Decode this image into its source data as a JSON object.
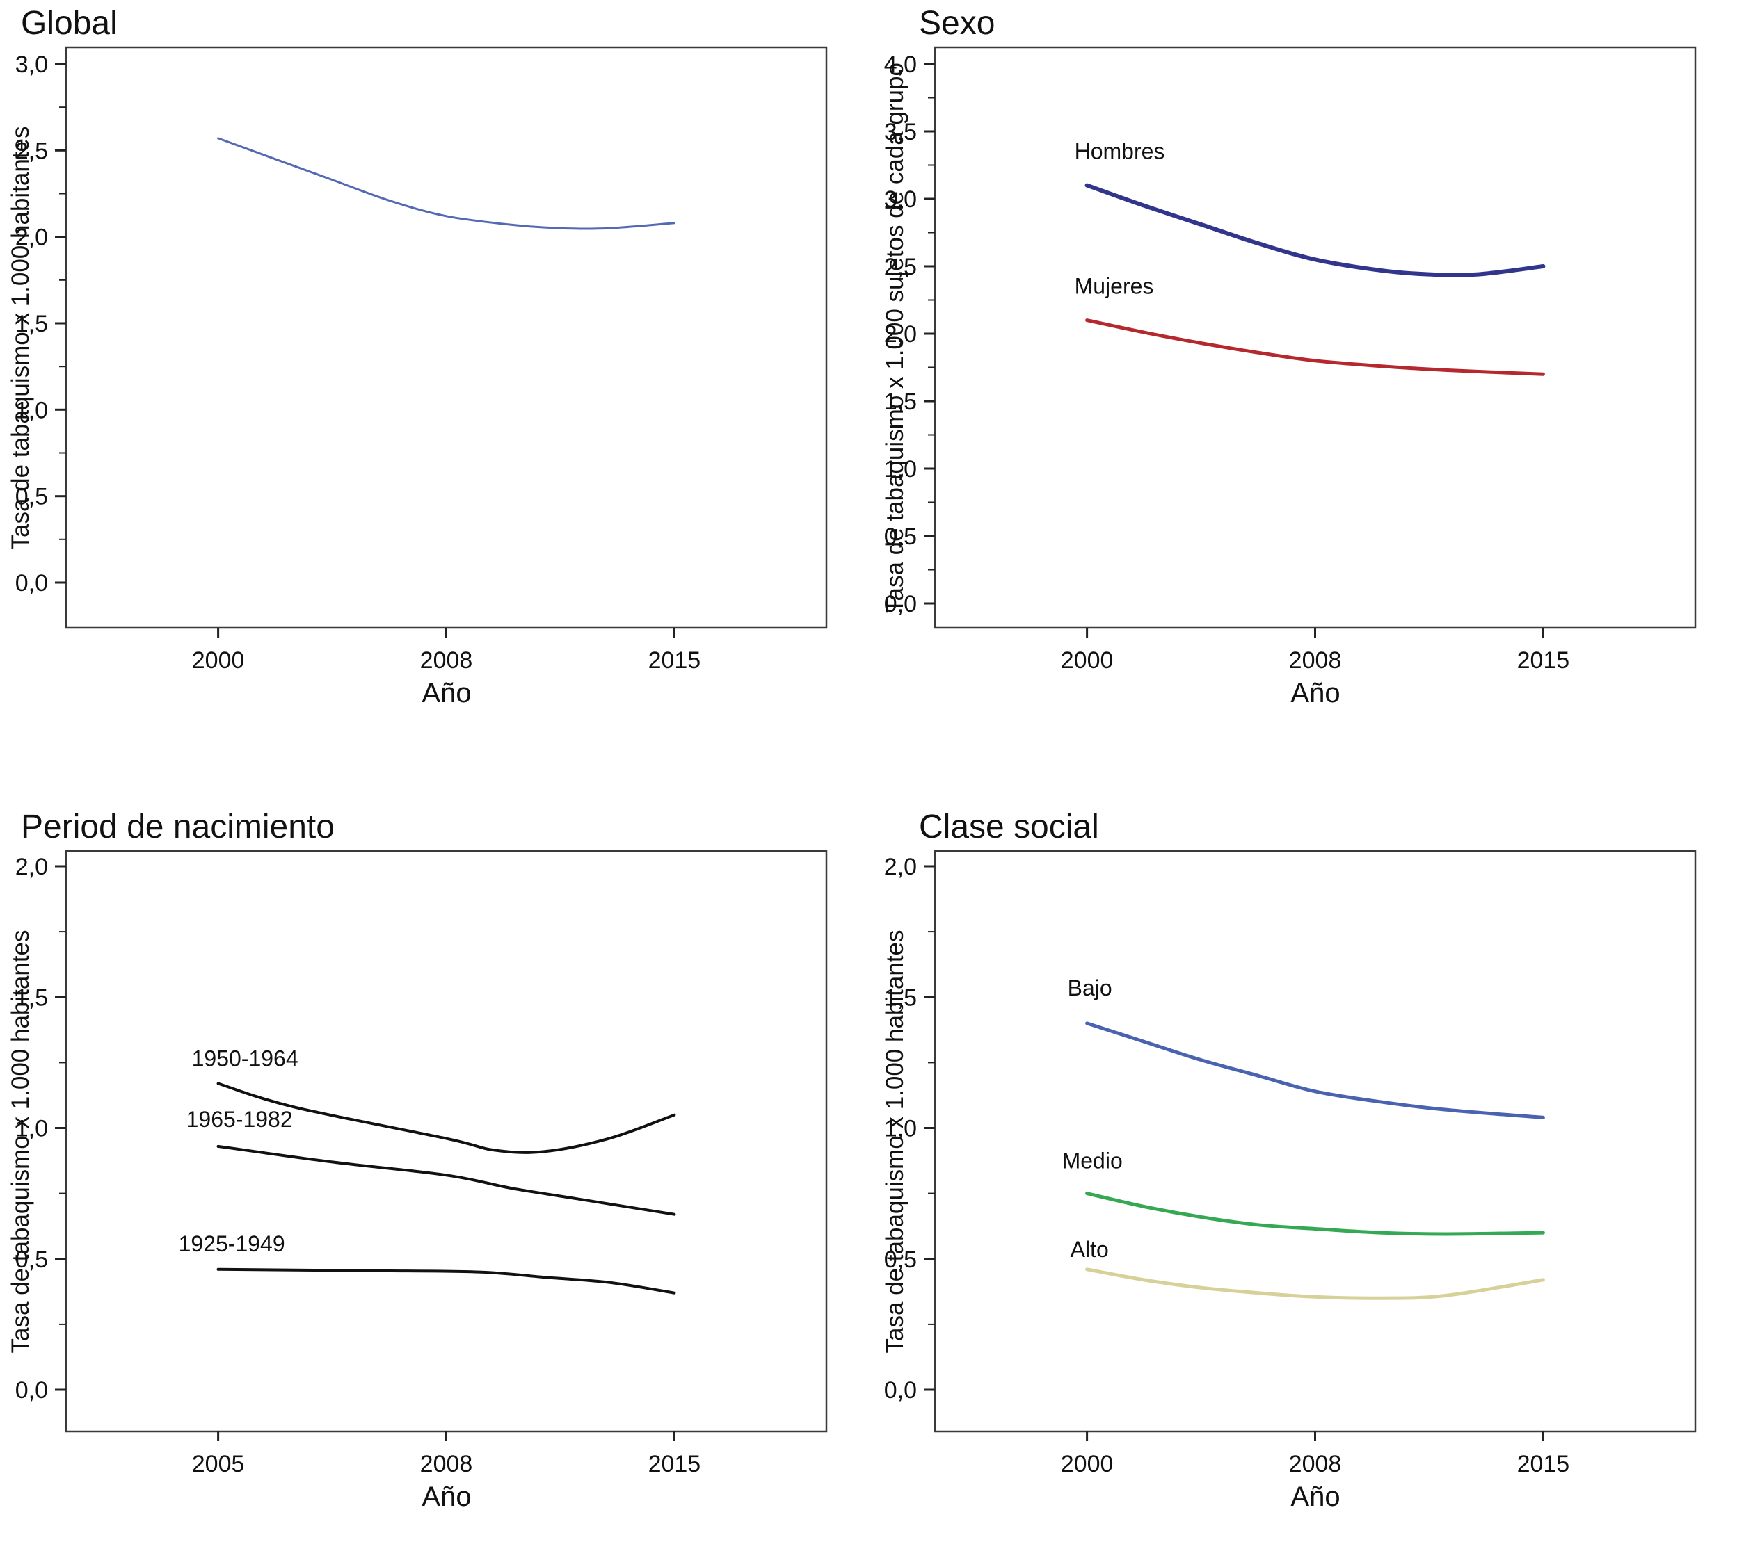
{
  "figure": {
    "x_axis_title": "Año",
    "y_axis_title_rates": "Tasa de tabaquismo x 1.000 habitantes",
    "y_axis_title_sex": "Tasa de tabaquismo x 1.000 sujetos de cada grupo"
  },
  "chart_data": [
    {
      "type": "line",
      "title": "Global",
      "xlabel": "Año",
      "ylabel": "Tasa de tabaquismo x 1.000 habitantes",
      "x_tick_labels": [
        "2000",
        "2008",
        "2015"
      ],
      "ylim": [
        0.0,
        3.0
      ],
      "y_tick_step": 0.5,
      "y_tick_format": "decimal-comma",
      "grid": false,
      "legend_position": "none",
      "series": [
        {
          "name": "Global",
          "label": "",
          "color": "#5468b4",
          "stroke_width": 3,
          "points": [
            [
              2000,
              2.57
            ],
            [
              2002,
              2.45
            ],
            [
              2004,
              2.33
            ],
            [
              2006,
              2.21
            ],
            [
              2008,
              2.12
            ],
            [
              2010,
              2.07
            ],
            [
              2011.5,
              2.05
            ],
            [
              2013,
              2.05
            ],
            [
              2015,
              2.08
            ]
          ]
        }
      ]
    },
    {
      "type": "line",
      "title": "Sexo",
      "xlabel": "Año",
      "ylabel": "Tasa de tabaquismo x 1.000 sujetos de cada grupo",
      "x_tick_labels": [
        "2000",
        "2008",
        "2015"
      ],
      "ylim": [
        0.0,
        4.0
      ],
      "y_tick_step": 0.5,
      "y_tick_format": "decimal-comma",
      "grid": false,
      "legend_position": "inline-labels",
      "series": [
        {
          "name": "Hombres",
          "label": "Hombres",
          "color": "#31358c",
          "stroke_width": 6,
          "points": [
            [
              2000,
              3.1
            ],
            [
              2002,
              2.95
            ],
            [
              2004,
              2.81
            ],
            [
              2006,
              2.67
            ],
            [
              2008,
              2.55
            ],
            [
              2010,
              2.47
            ],
            [
              2011.5,
              2.44
            ],
            [
              2013,
              2.44
            ],
            [
              2015,
              2.5
            ]
          ]
        },
        {
          "name": "Mujeres",
          "label": "Mujeres",
          "color": "#b5282d",
          "stroke_width": 5,
          "points": [
            [
              2000,
              2.1
            ],
            [
              2002,
              2.01
            ],
            [
              2004,
              1.93
            ],
            [
              2006,
              1.86
            ],
            [
              2008,
              1.8
            ],
            [
              2010,
              1.76
            ],
            [
              2012,
              1.73
            ],
            [
              2015,
              1.7
            ]
          ]
        }
      ]
    },
    {
      "type": "line",
      "title": "Period de nacimiento",
      "xlabel": "Año",
      "ylabel": "Tasa de tabaquismo x 1.000 habitantes",
      "x_tick_labels": [
        "2005",
        "2008",
        "2015"
      ],
      "ylim": [
        0.0,
        2.0
      ],
      "y_tick_step": 0.5,
      "y_tick_format": "decimal-comma",
      "grid": false,
      "legend_position": "inline-labels",
      "series": [
        {
          "name": "1950-1964",
          "label": "1950-1964",
          "color": "#111111",
          "stroke_width": 4,
          "points": [
            [
              2005,
              1.17
            ],
            [
              2006,
              1.08
            ],
            [
              2008,
              0.96
            ],
            [
              2009.5,
              0.915
            ],
            [
              2011,
              0.91
            ],
            [
              2013,
              0.96
            ],
            [
              2015,
              1.05
            ]
          ]
        },
        {
          "name": "1965-1982",
          "label": "1965-1982",
          "color": "#111111",
          "stroke_width": 4,
          "points": [
            [
              2005,
              0.93
            ],
            [
              2006.5,
              0.87
            ],
            [
              2008,
              0.82
            ],
            [
              2010,
              0.77
            ],
            [
              2012,
              0.73
            ],
            [
              2015,
              0.67
            ]
          ]
        },
        {
          "name": "1925-1949",
          "label": "1925-1949",
          "color": "#111111",
          "stroke_width": 4,
          "points": [
            [
              2005,
              0.46
            ],
            [
              2007,
              0.455
            ],
            [
              2009,
              0.45
            ],
            [
              2011,
              0.43
            ],
            [
              2013,
              0.41
            ],
            [
              2015,
              0.37
            ]
          ]
        }
      ]
    },
    {
      "type": "line",
      "title": "Clase social",
      "xlabel": "Año",
      "ylabel": "Tasa de tabaquismo x 1.000 habitantes",
      "x_tick_labels": [
        "2000",
        "2008",
        "2015"
      ],
      "ylim": [
        0.0,
        2.0
      ],
      "y_tick_step": 0.5,
      "y_tick_format": "decimal-comma",
      "grid": false,
      "legend_position": "inline-labels",
      "series": [
        {
          "name": "Bajo",
          "label": "Bajo",
          "color": "#4a63b0",
          "stroke_width": 5,
          "points": [
            [
              2000,
              1.4
            ],
            [
              2002,
              1.33
            ],
            [
              2004,
              1.26
            ],
            [
              2006,
              1.2
            ],
            [
              2008,
              1.14
            ],
            [
              2010,
              1.1
            ],
            [
              2012,
              1.07
            ],
            [
              2015,
              1.04
            ]
          ]
        },
        {
          "name": "Medio",
          "label": "Medio",
          "color": "#35a854",
          "stroke_width": 5,
          "points": [
            [
              2000,
              0.75
            ],
            [
              2002,
              0.7
            ],
            [
              2004,
              0.66
            ],
            [
              2006,
              0.63
            ],
            [
              2008,
              0.615
            ],
            [
              2010,
              0.6
            ],
            [
              2012,
              0.595
            ],
            [
              2015,
              0.6
            ]
          ]
        },
        {
          "name": "Alto",
          "label": "Alto",
          "color": "#d8d099",
          "stroke_width": 5,
          "points": [
            [
              2000,
              0.46
            ],
            [
              2002,
              0.42
            ],
            [
              2004,
              0.39
            ],
            [
              2006,
              0.37
            ],
            [
              2008,
              0.355
            ],
            [
              2010,
              0.35
            ],
            [
              2012,
              0.36
            ],
            [
              2015,
              0.42
            ]
          ]
        }
      ]
    }
  ]
}
